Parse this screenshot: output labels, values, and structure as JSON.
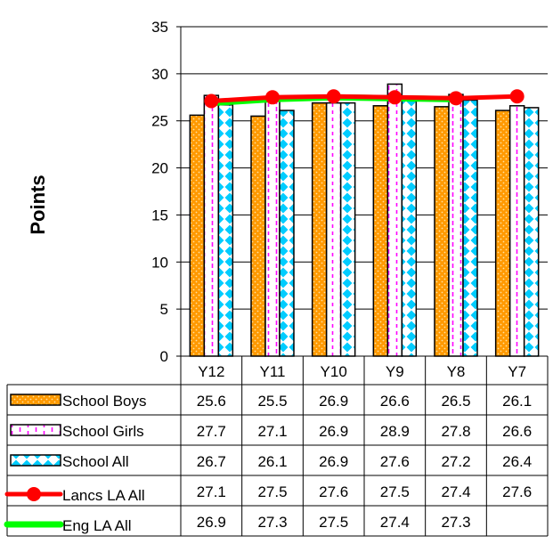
{
  "chart_data": {
    "type": "bar",
    "ylabel": "Points",
    "ylim": [
      0,
      35
    ],
    "yticks": [
      0,
      5,
      10,
      15,
      20,
      25,
      30,
      35
    ],
    "categories": [
      "Y12",
      "Y11",
      "Y10",
      "Y9",
      "Y8",
      "Y7"
    ],
    "series": [
      {
        "name": "School Boys",
        "kind": "bar",
        "pattern": "dots-orange",
        "color": "#FF9900",
        "values": [
          25.6,
          25.5,
          26.9,
          26.6,
          26.5,
          26.1
        ]
      },
      {
        "name": "School Girls",
        "kind": "bar",
        "pattern": "dashes-magenta",
        "color": "#FF00FF",
        "values": [
          27.7,
          27.1,
          26.9,
          28.9,
          27.8,
          26.6
        ]
      },
      {
        "name": "School All",
        "kind": "bar",
        "pattern": "diamonds-cyan",
        "color": "#00CCFF",
        "values": [
          26.7,
          26.1,
          26.9,
          27.6,
          27.2,
          26.4
        ]
      },
      {
        "name": "Lancs LA All",
        "kind": "line",
        "marker": "circle",
        "color": "#FF0000",
        "values": [
          27.1,
          27.5,
          27.6,
          27.5,
          27.4,
          27.6
        ]
      },
      {
        "name": "Eng LA All",
        "kind": "line",
        "marker": "none",
        "color": "#00FF00",
        "values": [
          26.9,
          27.3,
          27.5,
          27.4,
          27.3,
          null
        ]
      }
    ],
    "table_display": [
      [
        "25.6",
        "25.5",
        "26.9",
        "26.6",
        "26.5",
        "26.1"
      ],
      [
        "27.7",
        "27.1",
        "26.9",
        "28.9",
        "27.8",
        "26.6"
      ],
      [
        "26.7",
        "26.1",
        "26.9",
        "27.6",
        "27.2",
        "26.4"
      ],
      [
        "27.1",
        "27.5",
        "27.6",
        "27.5",
        "27.4",
        "27.6"
      ],
      [
        "26.9",
        "27.3",
        "27.5",
        "27.4",
        "27.3",
        ""
      ]
    ],
    "grid": true,
    "legend": "data-table-below"
  }
}
